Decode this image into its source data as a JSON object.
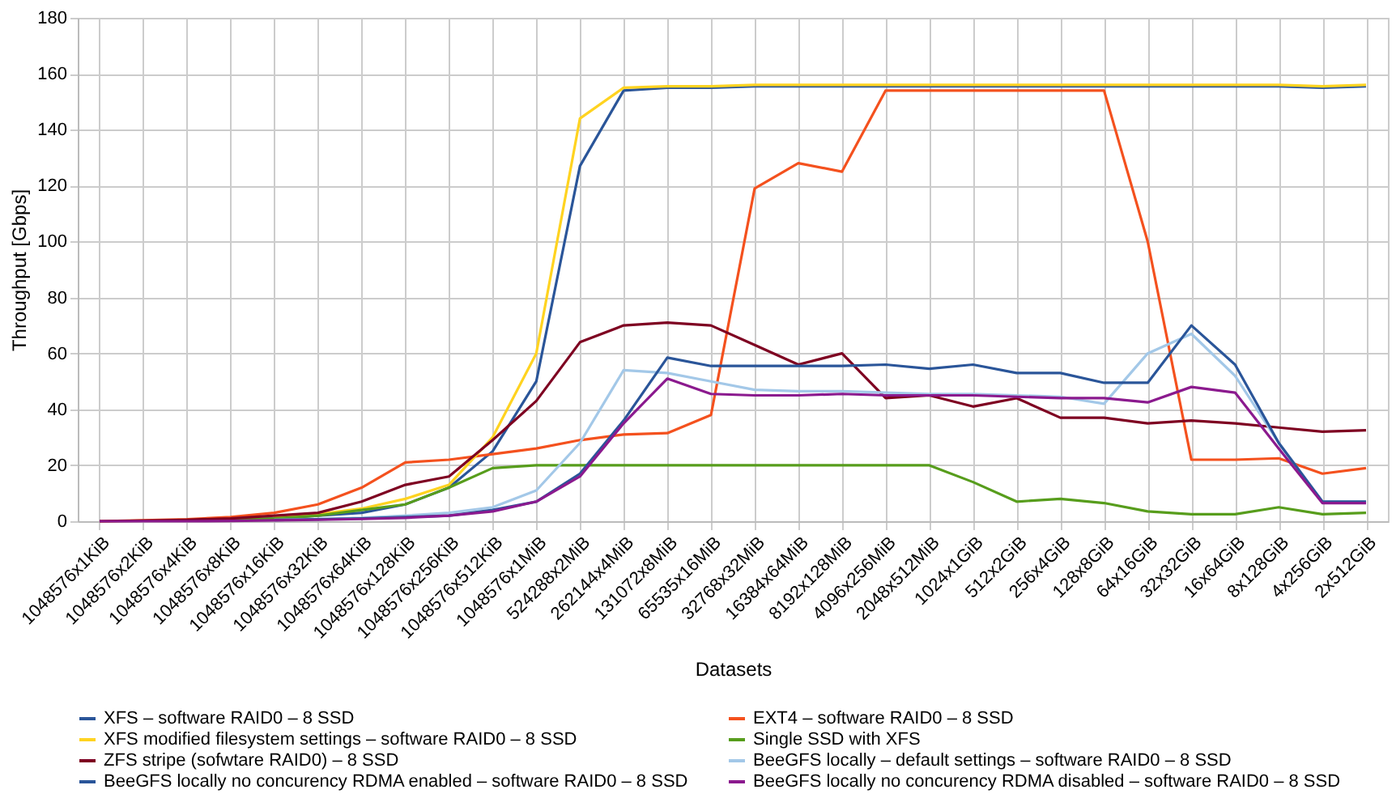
{
  "chart_data": {
    "type": "line",
    "xlabel": "Datasets",
    "ylabel": "Throughput [Gbps]",
    "categories": [
      "1048576x1KiB",
      "1048576x2KiB",
      "1048576x4KiB",
      "1048576x8KiB",
      "1048576x16KiB",
      "1048576x32KiB",
      "1048576x64KiB",
      "1048576x128KiB",
      "1048576x256KiB",
      "1048576x512KiB",
      "1048576x1MiB",
      "524288x2MiB",
      "262144x4MiB",
      "131072x8MiB",
      "65535x16MiB",
      "32768x32MiB",
      "16384x64MiB",
      "8192x128MiB",
      "4096x256MiB",
      "2048x512MiB",
      "1024x1GiB",
      "512x2GiB",
      "256x4GiB",
      "128x8GiB",
      "64x16GiB",
      "32x32GiB",
      "16x64GiB",
      "8x128GiB",
      "4x256GiB",
      "2x512GiB"
    ],
    "series": [
      {
        "name": "XFS  – software RAID0 – 8 SSD",
        "color": "#2a5599",
        "values": [
          null,
          null,
          0.3,
          0.5,
          1,
          2,
          3,
          6,
          12,
          25,
          50,
          127,
          154,
          155,
          155,
          155.5,
          155.5,
          155.5,
          155.5,
          155.5,
          155.5,
          155.5,
          155.5,
          155.5,
          155.5,
          155.5,
          155.5,
          155.5,
          155,
          155.5
        ]
      },
      {
        "name": "EXT4 – software RAID0 – 8 SSD",
        "color": "#f4511e",
        "values": [
          0,
          0.3,
          0.7,
          1.5,
          3,
          6,
          12,
          21,
          22,
          24,
          26,
          29,
          31,
          31.5,
          38,
          119,
          128,
          125,
          154,
          154,
          154,
          154,
          154,
          154,
          100,
          22,
          22,
          22.5,
          17,
          19
        ]
      },
      {
        "name": "XFS modified filesystem settings – software RAID0 – 8 SSD",
        "color": "#ffd320",
        "values": [
          null,
          null,
          null,
          null,
          1.2,
          2.5,
          4.5,
          8,
          13,
          30,
          60,
          144,
          155,
          155.5,
          155.5,
          156,
          156,
          156,
          156,
          156,
          156,
          156,
          156,
          156,
          156,
          156,
          156,
          156,
          155.5,
          156
        ]
      },
      {
        "name": "Single SSD with XFS",
        "color": "#579d1c",
        "values": [
          null,
          null,
          0.2,
          0.5,
          1,
          2,
          4,
          6,
          12,
          19,
          20,
          20,
          20,
          20,
          20,
          20,
          20,
          20,
          20,
          20,
          14,
          7,
          8,
          6.5,
          3.5,
          2.5,
          2.5,
          5,
          2.5,
          3
        ]
      },
      {
        "name": "ZFS stripe (sofwtare RAID0) – 8 SSD",
        "color": "#7e0021",
        "values": [
          0,
          0.2,
          0.5,
          1,
          2,
          3,
          7,
          13,
          16,
          29,
          43,
          64,
          70,
          71,
          70,
          63,
          56,
          60,
          44,
          45,
          41,
          44,
          37,
          37,
          35,
          36,
          35,
          33.5,
          32,
          32.5
        ]
      },
      {
        "name": "BeeGFS locally – default settings – software RAID0 – 8 SSD",
        "color": "#a3c8e8",
        "values": [
          null,
          null,
          null,
          null,
          0.5,
          0.8,
          1.2,
          2,
          3,
          5,
          11,
          28,
          54,
          53,
          50,
          47,
          46.5,
          46.5,
          46,
          45.5,
          45.5,
          45,
          44.5,
          42,
          60,
          67,
          52,
          28,
          7,
          7
        ]
      },
      {
        "name": "BeeGFS locally no concurency RDMA enabled – software RAID0 – 8 SSD",
        "color": "#2a5599",
        "values": [
          null,
          null,
          null,
          null,
          0.4,
          0.7,
          1,
          1.5,
          2,
          4,
          7,
          17,
          36,
          58.5,
          55.5,
          55.5,
          55.5,
          55.5,
          56,
          54.5,
          56,
          53,
          53,
          49.5,
          49.5,
          70,
          56,
          28,
          7,
          7
        ]
      },
      {
        "name": "BeeGFS locally no concurency RDMA disabled – software RAID0 – 8 SSD",
        "color": "#8b1a8e",
        "values": [
          0,
          0,
          0,
          0.1,
          0.3,
          0.5,
          0.8,
          1.2,
          2,
          3.5,
          7,
          16,
          35,
          51,
          45.5,
          45,
          45,
          45.5,
          45,
          45,
          45,
          44.5,
          44,
          44,
          42.5,
          48,
          46,
          26,
          6.5,
          6.5
        ]
      }
    ],
    "ylim": [
      0,
      180
    ],
    "yticks": [
      0,
      20,
      40,
      60,
      80,
      100,
      120,
      140,
      160,
      180
    ],
    "grid": true,
    "legend": "bottom",
    "marker": "none",
    "line_style": "solid"
  }
}
